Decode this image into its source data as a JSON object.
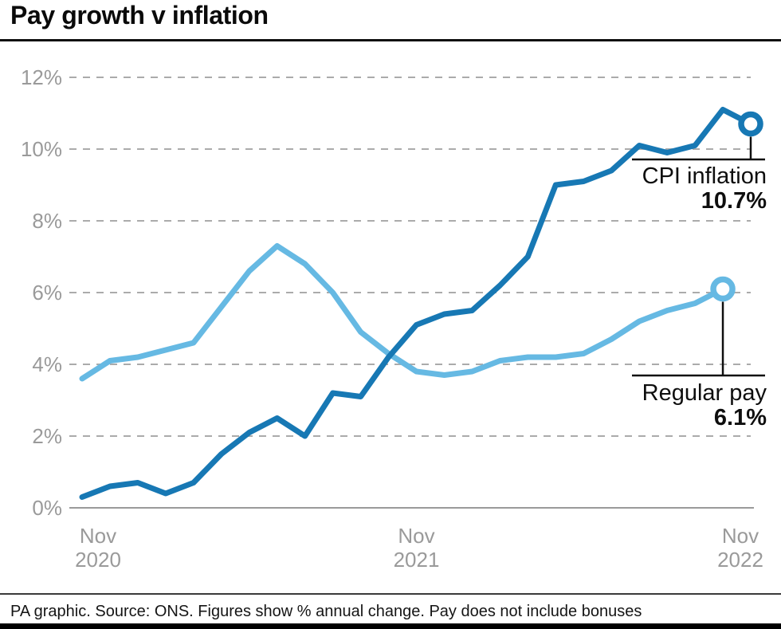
{
  "header": {
    "title": "Pay growth v inflation"
  },
  "chart_data": {
    "type": "line",
    "title": "Pay growth v inflation",
    "xlabel": "",
    "ylabel": "% annual change",
    "ylim": [
      0,
      12
    ],
    "grid": "horizontal-dashed",
    "legend_position": "end-of-line-callouts",
    "yticks": [
      {
        "value": 12,
        "label": "12%"
      },
      {
        "value": 10,
        "label": "10%"
      },
      {
        "value": 8,
        "label": "8%"
      },
      {
        "value": 6,
        "label": "6%"
      },
      {
        "value": 4,
        "label": "4%"
      },
      {
        "value": 2,
        "label": "2%"
      },
      {
        "value": 0,
        "label": "0%"
      }
    ],
    "x_axis": [
      {
        "month_index": 0,
        "line1": "Nov",
        "line2": "2020"
      },
      {
        "month_index": 12,
        "line1": "Nov",
        "line2": "2021"
      },
      {
        "month_index": 24,
        "line1": "Nov",
        "line2": "2022"
      }
    ],
    "x_unit": "month",
    "months_span": 24,
    "series": [
      {
        "name": "CPI inflation",
        "color": "#1778b4",
        "start_month_index": 0,
        "end_value_label": "10.7%",
        "values": [
          0.3,
          0.6,
          0.7,
          0.4,
          0.7,
          1.5,
          2.1,
          2.5,
          2.0,
          3.2,
          3.1,
          4.2,
          5.1,
          5.4,
          5.5,
          6.2,
          7.0,
          9.0,
          9.1,
          9.4,
          10.1,
          9.9,
          10.1,
          11.1,
          10.7
        ]
      },
      {
        "name": "Regular pay",
        "color": "#66b9e3",
        "start_month_index": 0,
        "end_value_label": "6.1%",
        "values": [
          3.6,
          4.1,
          4.2,
          4.4,
          4.6,
          5.6,
          6.6,
          7.3,
          6.8,
          6.0,
          4.9,
          4.3,
          3.8,
          3.7,
          3.8,
          4.1,
          4.2,
          4.2,
          4.3,
          4.7,
          5.2,
          5.5,
          5.7,
          6.1
        ]
      }
    ]
  },
  "annotations": {
    "cpi": {
      "label": "CPI inflation",
      "value": "10.7%"
    },
    "pay": {
      "label": "Regular pay",
      "value": "6.1%"
    }
  },
  "footer": {
    "text": "PA graphic. Source: ONS. Figures show % annual change. Pay does not include bonuses"
  },
  "colors": {
    "cpi_line": "#1778b4",
    "pay_line": "#66b9e3",
    "axis_text": "#9a9a9a",
    "gridline": "#ababab",
    "callout": "#101010"
  }
}
